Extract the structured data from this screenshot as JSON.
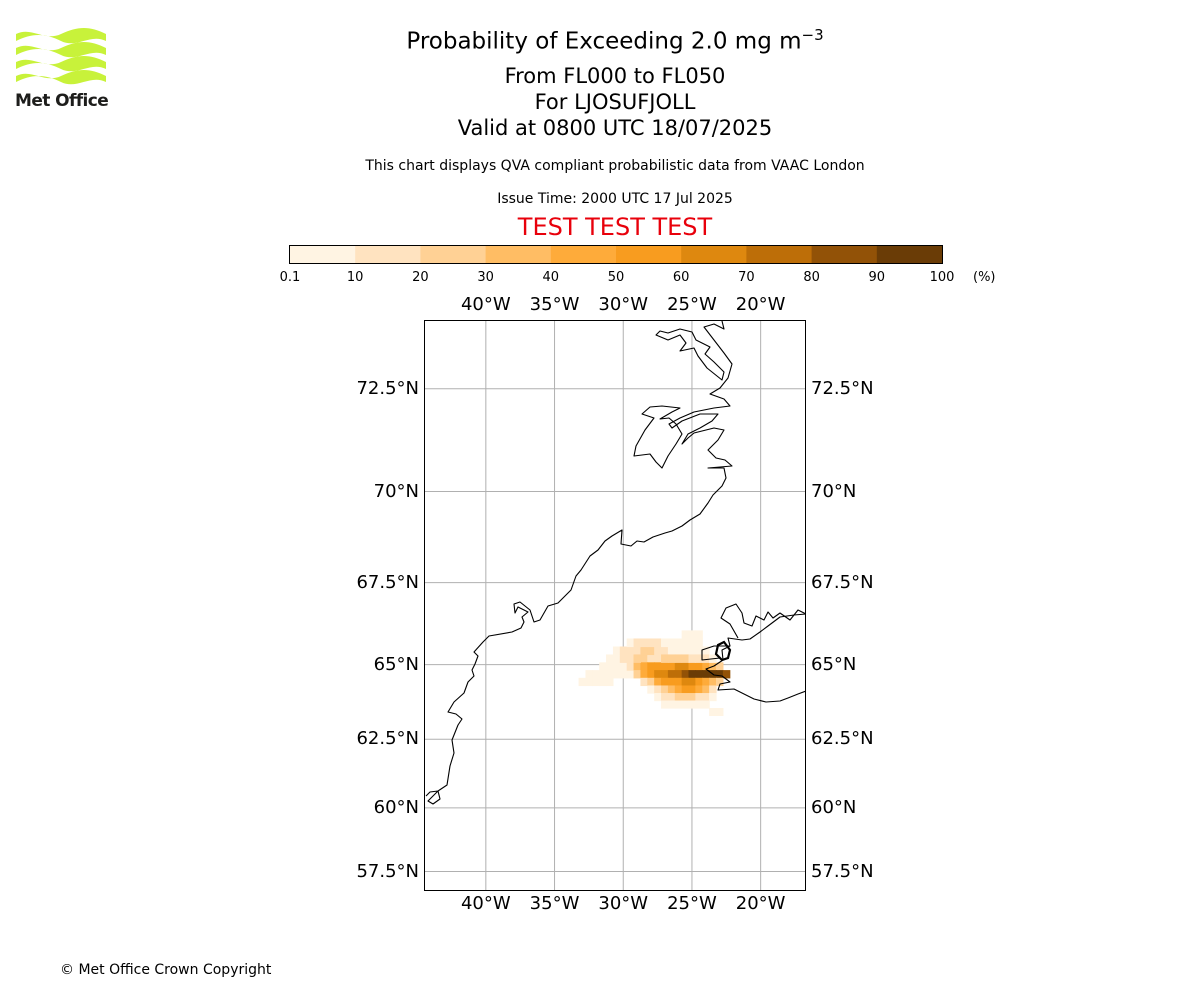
{
  "header": {
    "title_prefix": "Probability of Exceeding 2.0 mg m",
    "title_exponent": "−3",
    "line2": "From FL000 to FL050",
    "line3": "For LJOSUFJOLL",
    "line4": "Valid at 0800 UTC 18/07/2025",
    "note": "This chart displays QVA compliant probabilistic data from VAAC London",
    "issue_time": "Issue Time: 2000 UTC 17 Jul 2025",
    "test_banner": "TEST TEST TEST",
    "test_color": "#e8000b"
  },
  "logo": {
    "text": "Met Office",
    "icon": "met-office-wave-logo-icon",
    "color": "#c8f23a"
  },
  "footer": {
    "copyright": "© Met Office Crown Copyright"
  },
  "colorbar": {
    "unit": "(%)",
    "tick_labels": [
      "0.1",
      "10",
      "20",
      "30",
      "40",
      "50",
      "60",
      "70",
      "80",
      "90",
      "100"
    ],
    "bins": [
      {
        "from": 0.1,
        "to": 10,
        "color": "#fff4e3"
      },
      {
        "from": 10,
        "to": 20,
        "color": "#ffe3c0"
      },
      {
        "from": 20,
        "to": 30,
        "color": "#ffd195"
      },
      {
        "from": 30,
        "to": 40,
        "color": "#ffbd64"
      },
      {
        "from": 40,
        "to": 50,
        "color": "#feab3a"
      },
      {
        "from": 50,
        "to": 60,
        "color": "#f89c1f"
      },
      {
        "from": 60,
        "to": 70,
        "color": "#de880f"
      },
      {
        "from": 70,
        "to": 80,
        "color": "#bd6e08"
      },
      {
        "from": 80,
        "to": 90,
        "color": "#925207"
      },
      {
        "from": 90,
        "to": 100,
        "color": "#6a3c06"
      }
    ]
  },
  "map": {
    "lon_range": [
      -44.5,
      -16.7
    ],
    "lat_range": [
      56.7,
      74
    ],
    "lon_ticks": [
      -40,
      -35,
      -30,
      -25,
      -20
    ],
    "lon_tick_labels": [
      "40°W",
      "35°W",
      "30°W",
      "25°W",
      "20°W"
    ],
    "lat_ticks": [
      57.5,
      60,
      62.5,
      65,
      67.5,
      70,
      72.5
    ],
    "lat_tick_labels": [
      "57.5°N",
      "60°N",
      "62.5°N",
      "65°N",
      "67.5°N",
      "70°N",
      "72.5°N"
    ],
    "gridlines": true,
    "gridline_color": "#b0b0b0",
    "coastline_color": "#000000",
    "source_marker_color": "#000000"
  },
  "chart_data": {
    "type": "heatmap",
    "title": "Probability of Exceeding 2.0 mg m−3",
    "xlabel": "",
    "ylabel": "",
    "units": "%",
    "cell_size_deg": [
      0.5,
      0.25
    ],
    "cells": [
      {
        "lon": -33.0,
        "lat": 64.45,
        "p": 5
      },
      {
        "lon": -32.5,
        "lat": 64.45,
        "p": 5
      },
      {
        "lon": -32.0,
        "lat": 64.45,
        "p": 5
      },
      {
        "lon": -31.5,
        "lat": 64.45,
        "p": 5
      },
      {
        "lon": -31.0,
        "lat": 64.45,
        "p": 5
      },
      {
        "lon": -32.5,
        "lat": 64.7,
        "p": 5
      },
      {
        "lon": -32.0,
        "lat": 64.7,
        "p": 5
      },
      {
        "lon": -31.5,
        "lat": 64.7,
        "p": 5
      },
      {
        "lon": -31.0,
        "lat": 64.7,
        "p": 5
      },
      {
        "lon": -30.5,
        "lat": 64.7,
        "p": 5
      },
      {
        "lon": -30.0,
        "lat": 64.7,
        "p": 5
      },
      {
        "lon": -29.5,
        "lat": 64.7,
        "p": 5
      },
      {
        "lon": -31.5,
        "lat": 64.95,
        "p": 5
      },
      {
        "lon": -31.0,
        "lat": 64.95,
        "p": 5
      },
      {
        "lon": -30.5,
        "lat": 64.95,
        "p": 5
      },
      {
        "lon": -30.0,
        "lat": 64.95,
        "p": 5
      },
      {
        "lon": -29.5,
        "lat": 64.95,
        "p": 15
      },
      {
        "lon": -31.0,
        "lat": 65.2,
        "p": 5
      },
      {
        "lon": -30.5,
        "lat": 65.2,
        "p": 5
      },
      {
        "lon": -30.0,
        "lat": 65.2,
        "p": 15
      },
      {
        "lon": -29.5,
        "lat": 65.2,
        "p": 15
      },
      {
        "lon": -29.0,
        "lat": 65.2,
        "p": 25
      },
      {
        "lon": -28.5,
        "lat": 65.2,
        "p": 25
      },
      {
        "lon": -28.0,
        "lat": 65.2,
        "p": 15
      },
      {
        "lon": -27.5,
        "lat": 65.2,
        "p": 15
      },
      {
        "lon": -30.5,
        "lat": 65.45,
        "p": 5
      },
      {
        "lon": -30.0,
        "lat": 65.45,
        "p": 15
      },
      {
        "lon": -29.5,
        "lat": 65.45,
        "p": 15
      },
      {
        "lon": -29.0,
        "lat": 65.45,
        "p": 15
      },
      {
        "lon": -28.5,
        "lat": 65.45,
        "p": 25
      },
      {
        "lon": -28.0,
        "lat": 65.45,
        "p": 25
      },
      {
        "lon": -27.5,
        "lat": 65.45,
        "p": 15
      },
      {
        "lon": -27.0,
        "lat": 65.45,
        "p": 15
      },
      {
        "lon": -26.5,
        "lat": 65.45,
        "p": 5
      },
      {
        "lon": -29.5,
        "lat": 65.7,
        "p": 5
      },
      {
        "lon": -29.0,
        "lat": 65.7,
        "p": 15
      },
      {
        "lon": -28.5,
        "lat": 65.7,
        "p": 15
      },
      {
        "lon": -28.0,
        "lat": 65.7,
        "p": 15
      },
      {
        "lon": -27.5,
        "lat": 65.7,
        "p": 15
      },
      {
        "lon": -27.0,
        "lat": 65.7,
        "p": 5
      },
      {
        "lon": -26.5,
        "lat": 65.7,
        "p": 5
      },
      {
        "lon": -26.0,
        "lat": 65.7,
        "p": 5
      },
      {
        "lon": -25.5,
        "lat": 65.7,
        "p": 5
      },
      {
        "lon": -25.0,
        "lat": 65.7,
        "p": 5
      },
      {
        "lon": -24.5,
        "lat": 65.7,
        "p": 5
      },
      {
        "lon": -25.5,
        "lat": 65.95,
        "p": 5
      },
      {
        "lon": -25.0,
        "lat": 65.95,
        "p": 5
      },
      {
        "lon": -24.5,
        "lat": 65.95,
        "p": 5
      },
      {
        "lon": -24.0,
        "lat": 65.45,
        "p": 5
      },
      {
        "lon": -24.5,
        "lat": 65.45,
        "p": 5
      },
      {
        "lon": -25.0,
        "lat": 65.45,
        "p": 5
      },
      {
        "lon": -25.5,
        "lat": 65.45,
        "p": 5
      },
      {
        "lon": -26.0,
        "lat": 65.45,
        "p": 5
      },
      {
        "lon": -29.0,
        "lat": 64.95,
        "p": 35
      },
      {
        "lon": -28.5,
        "lat": 64.95,
        "p": 45
      },
      {
        "lon": -28.0,
        "lat": 64.95,
        "p": 55
      },
      {
        "lon": -27.5,
        "lat": 64.95,
        "p": 55
      },
      {
        "lon": -27.0,
        "lat": 64.95,
        "p": 55
      },
      {
        "lon": -26.5,
        "lat": 64.95,
        "p": 55
      },
      {
        "lon": -26.0,
        "lat": 64.95,
        "p": 65
      },
      {
        "lon": -25.5,
        "lat": 64.95,
        "p": 65
      },
      {
        "lon": -25.0,
        "lat": 64.95,
        "p": 55
      },
      {
        "lon": -24.5,
        "lat": 64.95,
        "p": 55
      },
      {
        "lon": -24.0,
        "lat": 64.95,
        "p": 45
      },
      {
        "lon": -23.5,
        "lat": 64.95,
        "p": 35
      },
      {
        "lon": -23.0,
        "lat": 64.95,
        "p": 25
      },
      {
        "lon": -29.0,
        "lat": 65.2,
        "p": 25
      },
      {
        "lon": -27.0,
        "lat": 65.2,
        "p": 25
      },
      {
        "lon": -26.5,
        "lat": 65.2,
        "p": 25
      },
      {
        "lon": -26.0,
        "lat": 65.2,
        "p": 25
      },
      {
        "lon": -25.5,
        "lat": 65.2,
        "p": 25
      },
      {
        "lon": -25.0,
        "lat": 65.2,
        "p": 15
      },
      {
        "lon": -24.5,
        "lat": 65.2,
        "p": 15
      },
      {
        "lon": -24.0,
        "lat": 65.2,
        "p": 15
      },
      {
        "lon": -23.5,
        "lat": 65.2,
        "p": 5
      },
      {
        "lon": -29.0,
        "lat": 64.7,
        "p": 25
      },
      {
        "lon": -28.5,
        "lat": 64.7,
        "p": 45
      },
      {
        "lon": -28.0,
        "lat": 64.7,
        "p": 55
      },
      {
        "lon": -27.5,
        "lat": 64.7,
        "p": 65
      },
      {
        "lon": -27.0,
        "lat": 64.7,
        "p": 65
      },
      {
        "lon": -26.5,
        "lat": 64.7,
        "p": 75
      },
      {
        "lon": -26.0,
        "lat": 64.7,
        "p": 75
      },
      {
        "lon": -25.5,
        "lat": 64.7,
        "p": 85
      },
      {
        "lon": -25.0,
        "lat": 64.7,
        "p": 95
      },
      {
        "lon": -24.5,
        "lat": 64.7,
        "p": 95
      },
      {
        "lon": -24.0,
        "lat": 64.7,
        "p": 95
      },
      {
        "lon": -23.5,
        "lat": 64.7,
        "p": 95
      },
      {
        "lon": -23.0,
        "lat": 64.7,
        "p": 95
      },
      {
        "lon": -22.5,
        "lat": 64.7,
        "p": 85
      },
      {
        "lon": -28.5,
        "lat": 64.45,
        "p": 15
      },
      {
        "lon": -28.0,
        "lat": 64.45,
        "p": 25
      },
      {
        "lon": -27.5,
        "lat": 64.45,
        "p": 45
      },
      {
        "lon": -27.0,
        "lat": 64.45,
        "p": 55
      },
      {
        "lon": -26.5,
        "lat": 64.45,
        "p": 55
      },
      {
        "lon": -26.0,
        "lat": 64.45,
        "p": 55
      },
      {
        "lon": -25.5,
        "lat": 64.45,
        "p": 65
      },
      {
        "lon": -25.0,
        "lat": 64.45,
        "p": 65
      },
      {
        "lon": -24.5,
        "lat": 64.45,
        "p": 55
      },
      {
        "lon": -24.0,
        "lat": 64.45,
        "p": 45
      },
      {
        "lon": -23.5,
        "lat": 64.45,
        "p": 35
      },
      {
        "lon": -23.0,
        "lat": 64.45,
        "p": 25
      },
      {
        "lon": -28.0,
        "lat": 64.2,
        "p": 5
      },
      {
        "lon": -27.5,
        "lat": 64.2,
        "p": 15
      },
      {
        "lon": -27.0,
        "lat": 64.2,
        "p": 25
      },
      {
        "lon": -26.5,
        "lat": 64.2,
        "p": 35
      },
      {
        "lon": -26.0,
        "lat": 64.2,
        "p": 45
      },
      {
        "lon": -25.5,
        "lat": 64.2,
        "p": 55
      },
      {
        "lon": -25.0,
        "lat": 64.2,
        "p": 55
      },
      {
        "lon": -24.5,
        "lat": 64.2,
        "p": 45
      },
      {
        "lon": -24.0,
        "lat": 64.2,
        "p": 35
      },
      {
        "lon": -23.5,
        "lat": 64.2,
        "p": 15
      },
      {
        "lon": -27.5,
        "lat": 63.95,
        "p": 5
      },
      {
        "lon": -27.0,
        "lat": 63.95,
        "p": 15
      },
      {
        "lon": -26.5,
        "lat": 63.95,
        "p": 15
      },
      {
        "lon": -26.0,
        "lat": 63.95,
        "p": 25
      },
      {
        "lon": -25.5,
        "lat": 63.95,
        "p": 25
      },
      {
        "lon": -25.0,
        "lat": 63.95,
        "p": 25
      },
      {
        "lon": -24.5,
        "lat": 63.95,
        "p": 15
      },
      {
        "lon": -24.0,
        "lat": 63.95,
        "p": 15
      },
      {
        "lon": -23.5,
        "lat": 63.95,
        "p": 5
      },
      {
        "lon": -27.0,
        "lat": 63.7,
        "p": 5
      },
      {
        "lon": -26.5,
        "lat": 63.7,
        "p": 5
      },
      {
        "lon": -26.0,
        "lat": 63.7,
        "p": 5
      },
      {
        "lon": -25.5,
        "lat": 63.7,
        "p": 5
      },
      {
        "lon": -25.0,
        "lat": 63.7,
        "p": 5
      },
      {
        "lon": -24.5,
        "lat": 63.7,
        "p": 5
      },
      {
        "lon": -24.0,
        "lat": 63.7,
        "p": 5
      },
      {
        "lon": -23.5,
        "lat": 63.45,
        "p": 5
      },
      {
        "lon": -23.0,
        "lat": 63.45,
        "p": 5
      }
    ]
  }
}
